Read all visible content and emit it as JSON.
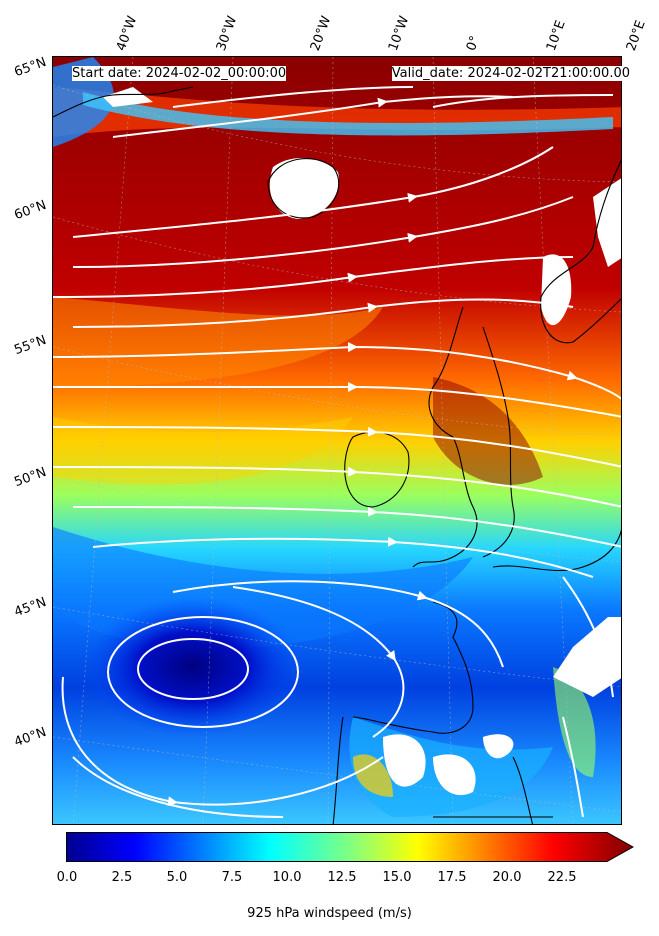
{
  "header": {
    "start_date": "Start date: 2024-02-02_00:00:00",
    "valid_date": "Valid_date: 2024-02-02T21:00:00.00"
  },
  "lon_labels": [
    "40°W",
    "30°W",
    "20°W",
    "10°W",
    "0°",
    "10°E",
    "20°E"
  ],
  "lat_labels": [
    "65°N",
    "60°N",
    "55°N",
    "50°N",
    "45°N",
    "40°N"
  ],
  "colorbar": {
    "label": "925 hPa windspeed (m/s)",
    "ticks": [
      "0.0",
      "2.5",
      "5.0",
      "7.5",
      "10.0",
      "12.5",
      "15.0",
      "17.5",
      "20.0",
      "22.5"
    ],
    "min": 0,
    "max": 25,
    "extend": "max",
    "colormap": "jet"
  },
  "colors": {
    "strong_wind": "#800000",
    "calm_wind": "#00008f",
    "streamline": "#ffffff",
    "coastline": "#000000",
    "masked": "#ffffff"
  }
}
